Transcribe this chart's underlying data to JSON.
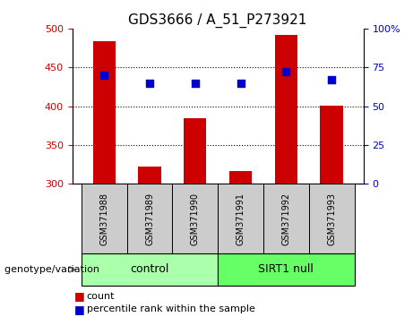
{
  "title": "GDS3666 / A_51_P273921",
  "samples": [
    "GSM371988",
    "GSM371989",
    "GSM371990",
    "GSM371991",
    "GSM371992",
    "GSM371993"
  ],
  "counts": [
    484,
    322,
    384,
    316,
    492,
    401
  ],
  "percentile_ranks": [
    70,
    65,
    65,
    65,
    72,
    67
  ],
  "left_ylim": [
    300,
    500
  ],
  "left_yticks": [
    300,
    350,
    400,
    450,
    500
  ],
  "right_ylim": [
    0,
    100
  ],
  "right_yticks": [
    0,
    25,
    50,
    75,
    100
  ],
  "right_yticklabels": [
    "0",
    "25",
    "50",
    "75",
    "100%"
  ],
  "bar_color": "#cc0000",
  "dot_color": "#0000cc",
  "bar_width": 0.5,
  "groups": [
    {
      "label": "control",
      "indices": [
        0,
        1,
        2
      ],
      "color": "#aaffaa"
    },
    {
      "label": "SIRT1 null",
      "indices": [
        3,
        4,
        5
      ],
      "color": "#66ff66"
    }
  ],
  "legend_count_label": "count",
  "legend_pct_label": "percentile rank within the sample",
  "group_label": "genotype/variation",
  "xtick_box_color": "#cccccc",
  "grid_yticks": [
    350,
    400,
    450
  ]
}
